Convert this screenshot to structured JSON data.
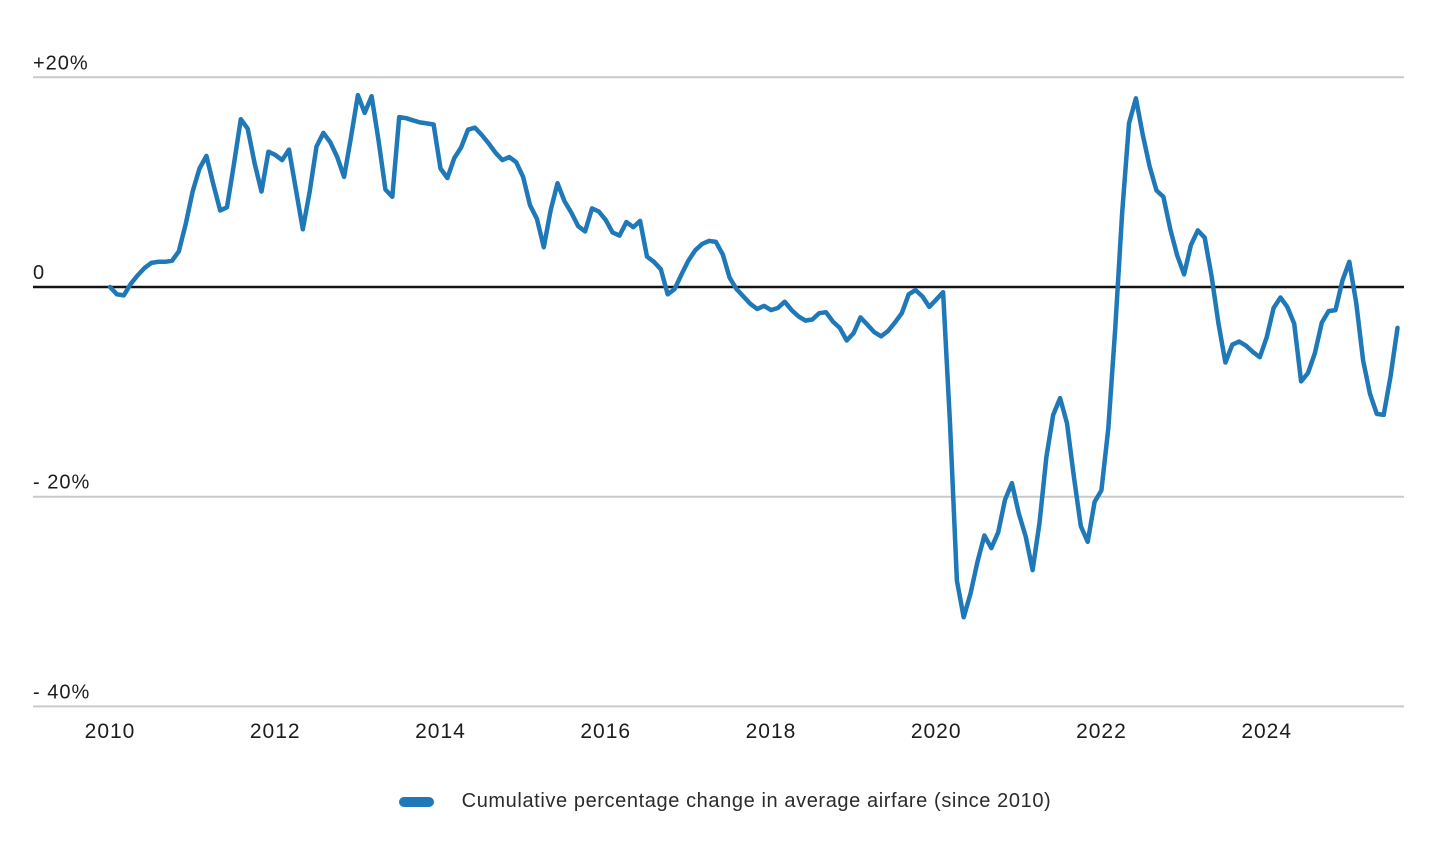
{
  "legend": {
    "label": "Cumulative percentage change in average airfare (since 2010)",
    "swatch_color": "#1f78b8"
  },
  "colors": {
    "line": "#1f78b8",
    "grid": "#c9c9c9",
    "zero_line": "#141414",
    "text": "#1c1c1c"
  },
  "chart_data": {
    "type": "line",
    "title": "",
    "xlabel": "",
    "ylabel": "",
    "x_unit": "month",
    "start": "2010-01",
    "end": "2025-08",
    "grid": "horizontal",
    "zero_line": true,
    "legend_position": "bottom-center",
    "ylim": [
      -42,
      25
    ],
    "y_ticks": [
      {
        "label": "+20%",
        "value": 20
      },
      {
        "label": "0",
        "value": 0
      },
      {
        "label": "- 20%",
        "value": -20
      },
      {
        "label": "- 40%",
        "value": -40
      }
    ],
    "x_ticks": [
      {
        "label": "2010",
        "year": 2010
      },
      {
        "label": "2012",
        "year": 2012
      },
      {
        "label": "2014",
        "year": 2014
      },
      {
        "label": "2016",
        "year": 2016
      },
      {
        "label": "2018",
        "year": 2018
      },
      {
        "label": "2020",
        "year": 2020
      },
      {
        "label": "2022",
        "year": 2022
      },
      {
        "label": "2024",
        "year": 2024
      }
    ],
    "series": [
      {
        "name": "Cumulative percentage change in average airfare (since 2010)",
        "color": "#1f78b8",
        "values": [
          0.0,
          -0.7,
          -0.8,
          0.3,
          1.1,
          1.8,
          2.3,
          2.4,
          2.4,
          2.5,
          3.4,
          6.0,
          9.1,
          11.3,
          12.5,
          9.8,
          7.3,
          7.6,
          11.7,
          16.0,
          15.1,
          11.8,
          9.1,
          12.9,
          12.6,
          12.1,
          13.1,
          9.3,
          5.5,
          9.1,
          13.4,
          14.7,
          13.8,
          12.4,
          10.5,
          14.3,
          18.3,
          16.6,
          18.2,
          14.0,
          9.3,
          8.6,
          16.2,
          16.1,
          15.9,
          15.7,
          15.6,
          15.5,
          11.3,
          10.4,
          12.3,
          13.3,
          15.0,
          15.2,
          14.5,
          13.7,
          12.8,
          12.1,
          12.4,
          11.9,
          10.5,
          7.8,
          6.5,
          3.8,
          7.3,
          9.9,
          8.2,
          7.1,
          5.8,
          5.3,
          7.5,
          7.2,
          6.4,
          5.2,
          4.9,
          6.2,
          5.7,
          6.3,
          2.9,
          2.4,
          1.7,
          -0.7,
          -0.2,
          1.2,
          2.5,
          3.5,
          4.1,
          4.4,
          4.3,
          3.1,
          0.9,
          -0.2,
          -0.9,
          -1.6,
          -2.1,
          -1.8,
          -2.2,
          -2.0,
          -1.4,
          -2.2,
          -2.8,
          -3.2,
          -3.1,
          -2.5,
          -2.4,
          -3.3,
          -3.9,
          -5.1,
          -4.4,
          -2.9,
          -3.6,
          -4.3,
          -4.7,
          -4.2,
          -3.4,
          -2.5,
          -0.7,
          -0.3,
          -0.9,
          -1.9,
          -1.2,
          -0.5,
          -13.0,
          -28.0,
          -31.5,
          -29.2,
          -26.2,
          -23.7,
          -24.9,
          -23.4,
          -20.3,
          -18.7,
          -21.6,
          -23.8,
          -27.0,
          -22.5,
          -16.2,
          -12.2,
          -10.6,
          -13.0,
          -18.1,
          -22.8,
          -24.3,
          -20.5,
          -19.4,
          -13.5,
          -4.0,
          7.0,
          15.6,
          18.0,
          14.5,
          11.5,
          9.2,
          8.6,
          5.5,
          3.0,
          1.2,
          4.0,
          5.4,
          4.7,
          1.0,
          -3.5,
          -7.2,
          -5.5,
          -5.2,
          -5.6,
          -6.2,
          -6.7,
          -4.8,
          -2.0,
          -1.0,
          -1.9,
          -3.5,
          -9.0,
          -8.2,
          -6.3,
          -3.4,
          -2.3,
          -2.2,
          0.6,
          2.4,
          -1.5,
          -7.0,
          -10.2,
          -12.1,
          -12.2,
          -8.5,
          -3.9
        ]
      }
    ]
  }
}
